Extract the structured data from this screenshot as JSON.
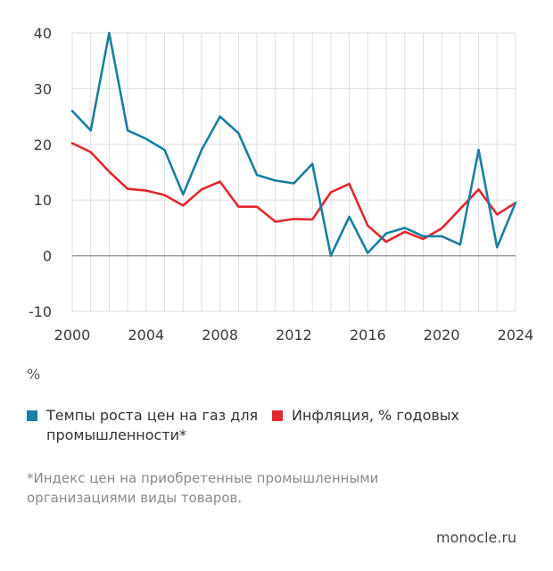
{
  "chart_data": {
    "type": "line",
    "x": [
      2000,
      2001,
      2002,
      2003,
      2004,
      2005,
      2006,
      2007,
      2008,
      2009,
      2010,
      2011,
      2012,
      2013,
      2014,
      2015,
      2016,
      2017,
      2018,
      2019,
      2020,
      2021,
      2022,
      2023,
      2024
    ],
    "series": [
      {
        "name": "Темпы роста цен на газ для промышленности*",
        "color": "#1a7fa0",
        "values": [
          26,
          22.5,
          40,
          22.5,
          21,
          19,
          11,
          19,
          25,
          22,
          14.5,
          13.5,
          13,
          16.5,
          0,
          7,
          0.5,
          4,
          5,
          3.5,
          3.5,
          2,
          19,
          1.5,
          9.5
        ]
      },
      {
        "name": "Инфляция, % годовых",
        "color": "#e0282e",
        "values": [
          20.2,
          18.6,
          15.1,
          12,
          11.7,
          10.9,
          9,
          11.9,
          13.3,
          8.8,
          8.8,
          6.1,
          6.6,
          6.5,
          11.4,
          12.9,
          5.4,
          2.5,
          4.3,
          3,
          4.9,
          8.4,
          11.9,
          7.4,
          9.5
        ]
      }
    ],
    "ylim": [
      -10,
      40
    ],
    "yticks": [
      -10,
      0,
      10,
      20,
      30,
      40
    ],
    "xlim": [
      2000,
      2024
    ],
    "xticks": [
      2000,
      2004,
      2008,
      2012,
      2016,
      2020,
      2024
    ],
    "grid": true,
    "ylabel": "%",
    "legend_position": "bottom"
  },
  "unit_label": "%",
  "footnote": "*Индекс цен на приобретенные промышленными организациями виды товаров.",
  "source": "monocle.ru"
}
